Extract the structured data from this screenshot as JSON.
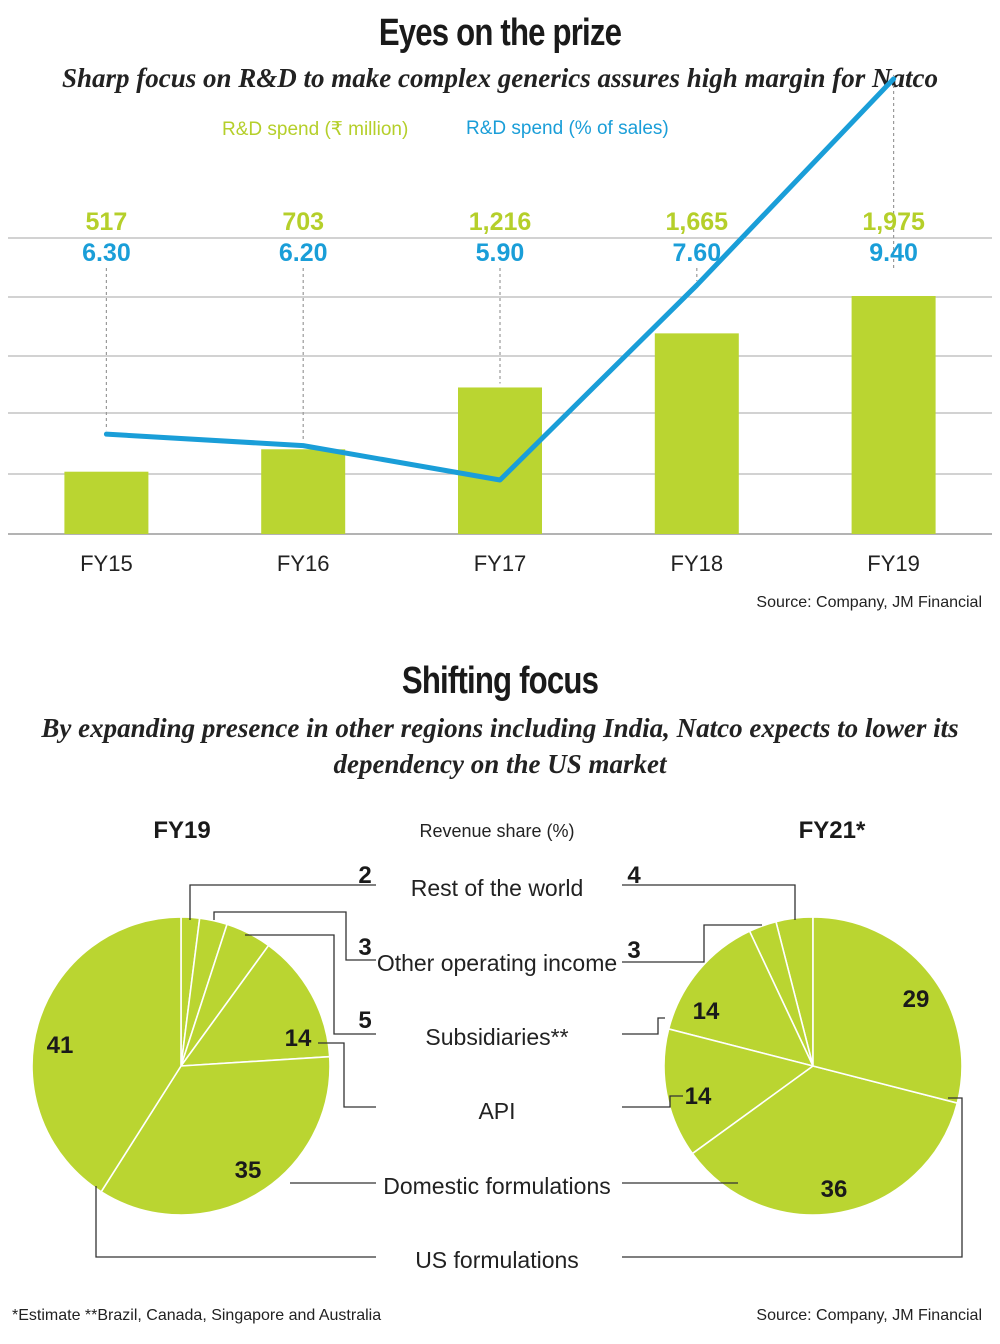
{
  "colors": {
    "green": "#bad531",
    "blue": "#1a9ed8",
    "grid": "#b8b8b8",
    "ink": "#1a1a1a"
  },
  "chart_data": [
    {
      "type": "bar",
      "title": "Eyes on the prize",
      "subtitle": "Sharp focus on R&D to make complex generics assures high margin for Natco",
      "categories": [
        "FY15",
        "FY16",
        "FY17",
        "FY18",
        "FY19"
      ],
      "series": [
        {
          "name": "R&D spend (₹ million)",
          "type": "bar",
          "values": [
            517,
            703,
            1216,
            1665,
            1975
          ],
          "labels": [
            "517",
            "703",
            "1,216",
            "1,665",
            "1,975"
          ]
        },
        {
          "name": "R&D spend (% of sales)",
          "type": "line",
          "values": [
            6.3,
            6.2,
            5.9,
            7.6,
            9.4
          ],
          "labels": [
            "6.30",
            "6.20",
            "5.90",
            "7.60",
            "9.40"
          ]
        }
      ],
      "grid": true,
      "legend": "top",
      "source": "Source: Company, JM Financial"
    },
    {
      "type": "pie",
      "title": "Shifting focus",
      "subtitle": "By expanding presence in other regions including India, Natco expects to lower its dependency on the US market",
      "measure": "Revenue share (%)",
      "categories": [
        "Rest of the world",
        "Other operating income",
        "Subsidiaries**",
        "API",
        "Domestic formulations",
        "US formulations"
      ],
      "series": [
        {
          "name": "FY19",
          "values": [
            2,
            3,
            5,
            14,
            35,
            41
          ]
        },
        {
          "name": "FY21*",
          "values": [
            4,
            3,
            14,
            14,
            36,
            29
          ]
        }
      ],
      "footnote": "*Estimate **Brazil, Canada, Singapore and Australia",
      "source": "Source: Company, JM Financial"
    }
  ]
}
